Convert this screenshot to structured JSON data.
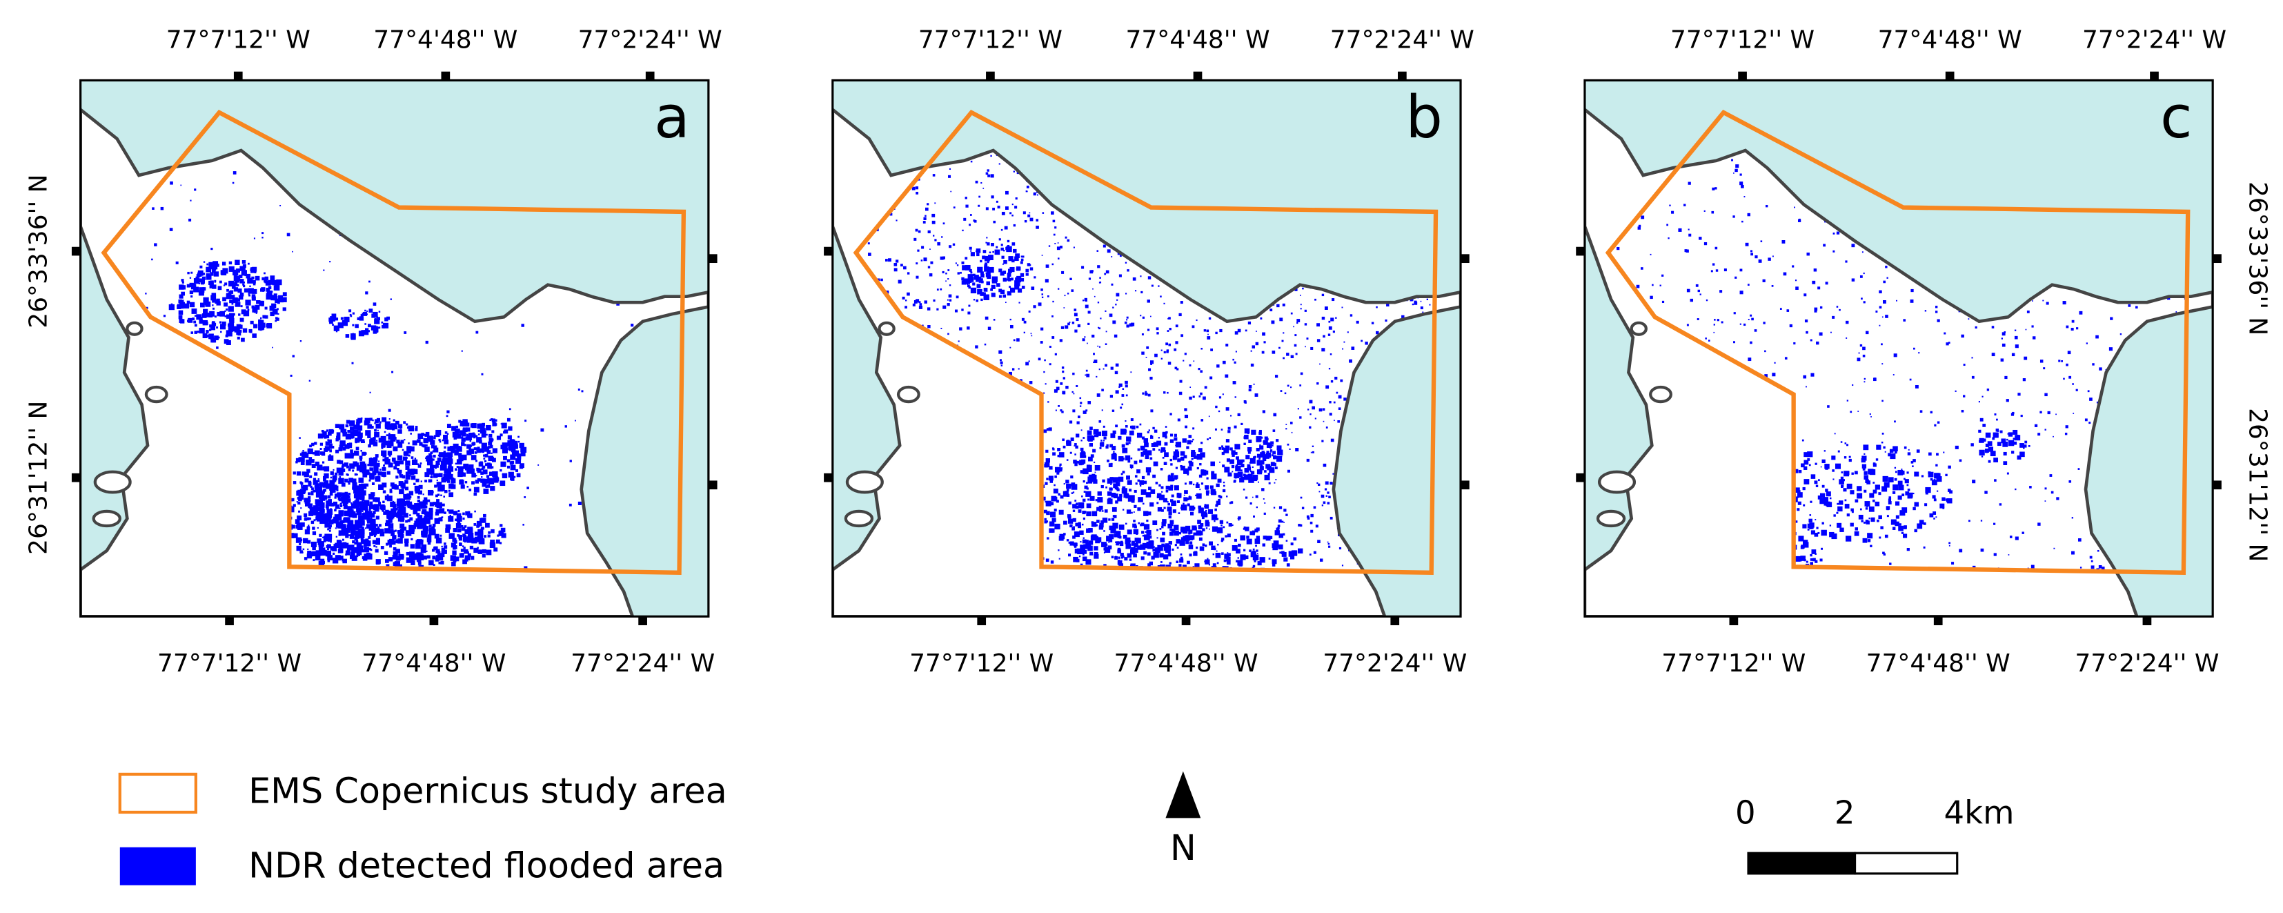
{
  "panels": [
    {
      "label": "a",
      "top_labels": [
        "77°7'12'' W",
        "77°4'48'' W",
        "77°2'24'' W"
      ],
      "bottom_labels": [
        "77°7'12'' W",
        "77°4'48'' W",
        "77°2'24'' W"
      ],
      "left_labels": [
        "26°33'36'' N",
        "26°31'12'' N"
      ]
    },
    {
      "label": "b",
      "top_labels": [
        "77°7'12'' W",
        "77°4'48'' W",
        "77°2'24'' W"
      ],
      "bottom_labels": [
        "77°7'12'' W",
        "77°4'48'' W",
        "77°2'24'' W"
      ]
    },
    {
      "label": "c",
      "top_labels": [
        "77°7'12'' W",
        "77°4'48'' W",
        "77°2'24'' W"
      ],
      "bottom_labels": [
        "77°7'12'' W",
        "77°4'48'' W",
        "77°2'24'' W"
      ],
      "right_labels": [
        "26°33'36'' N",
        "26°31'12'' N"
      ]
    }
  ],
  "legend": [
    {
      "label": "EMS Copernicus study area"
    },
    {
      "label": "NDR detected flooded area"
    }
  ],
  "north_arrow": "N",
  "scale_bar": [
    "0",
    "2",
    "4km"
  ]
}
